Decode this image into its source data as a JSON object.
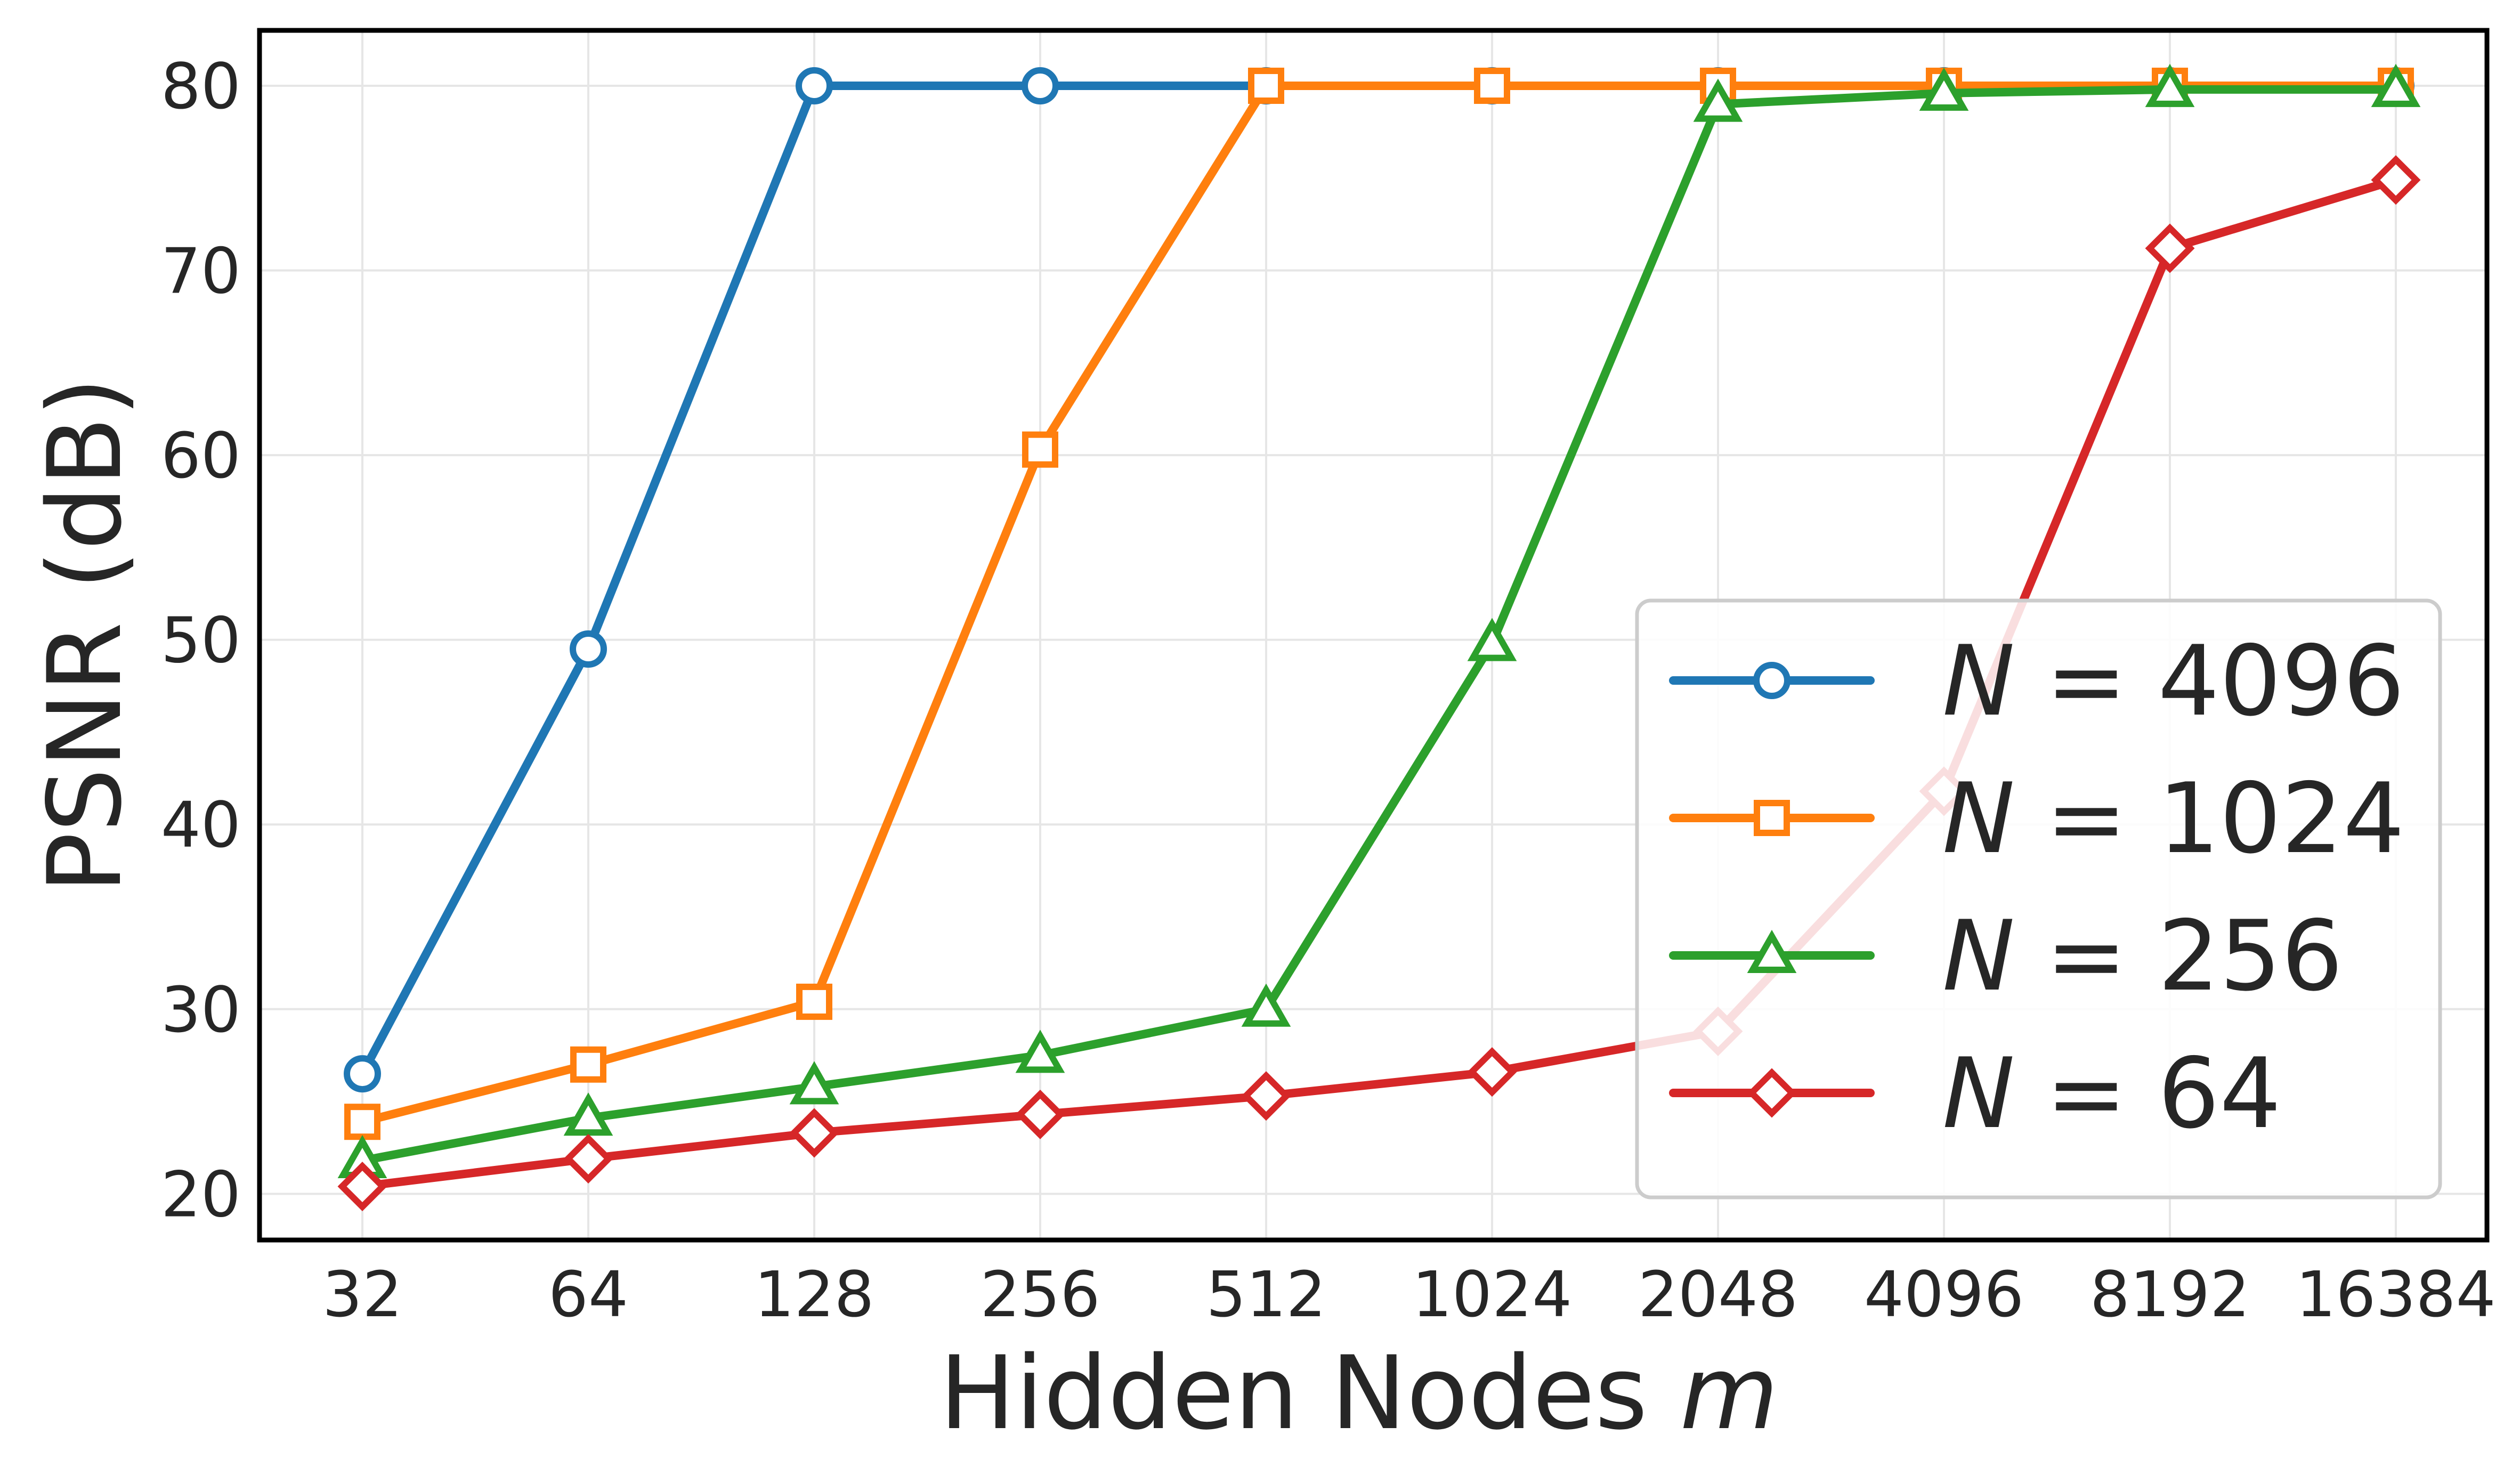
{
  "chart_data": {
    "type": "line",
    "x_scale": "log2",
    "x": [
      32,
      64,
      128,
      256,
      512,
      1024,
      2048,
      4096,
      8192,
      16384
    ],
    "x_tick_labels": [
      "32",
      "64",
      "128",
      "256",
      "512",
      "1024",
      "2048",
      "4096",
      "8192",
      "16384"
    ],
    "xlabel": "Hidden Nodes",
    "xlabel_var": "m",
    "ylabel": "PSNR (dB)",
    "ylim": [
      17.5,
      83
    ],
    "yticks": [
      20,
      30,
      40,
      50,
      60,
      70,
      80
    ],
    "grid": true,
    "legend_position": "lower-right",
    "series": [
      {
        "name": "N = 4096",
        "var": "N",
        "value_label": "= 4096",
        "color": "#1f77b4",
        "marker": "circle",
        "values": [
          26.5,
          49.5,
          80,
          80,
          80,
          80,
          80,
          80,
          80,
          80
        ]
      },
      {
        "name": "N = 1024",
        "var": "N",
        "value_label": "= 1024",
        "color": "#ff7f0e",
        "marker": "square",
        "values": [
          23.9,
          27.0,
          30.4,
          60.3,
          80,
          80,
          80,
          80,
          80,
          80
        ]
      },
      {
        "name": "N = 256",
        "var": "N",
        "value_label": "= 256",
        "color": "#2ca02c",
        "marker": "triangle",
        "values": [
          21.8,
          24.1,
          25.8,
          27.5,
          30.0,
          49.8,
          79.0,
          79.6,
          79.8,
          79.8
        ]
      },
      {
        "name": "N = 64",
        "var": "N",
        "value_label": "= 64",
        "color": "#d62728",
        "marker": "diamond",
        "values": [
          20.4,
          21.9,
          23.3,
          24.3,
          25.3,
          26.6,
          28.8,
          41.8,
          71.2,
          74.9
        ]
      }
    ]
  }
}
